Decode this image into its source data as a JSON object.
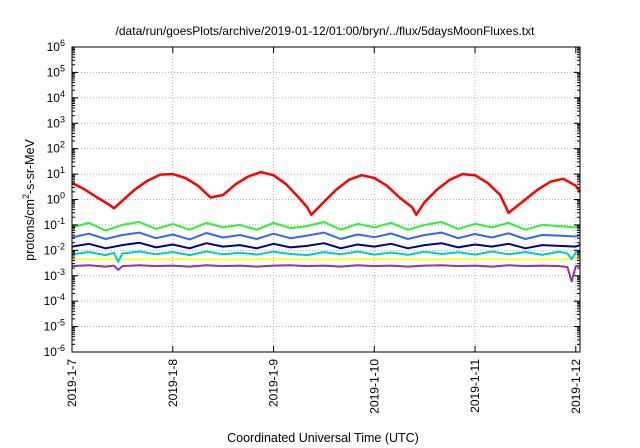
{
  "chart_data": {
    "type": "line",
    "title": "/data/run/goesPlots/archive/2019-01-12/01:00/bryn/../flux/5daysMoonFluxes.txt",
    "xlabel": "Coordinated Universal Time (UTC)",
    "ylabel": {
      "base": "protons/cm",
      "sup": "2",
      "rest": "-s-sr-MeV"
    },
    "x_scale": "time",
    "y_scale": "log",
    "xlim": [
      "2019-01-07T00:00",
      "2019-01-12T01:00"
    ],
    "ylim": [
      1e-06,
      1000000.0
    ],
    "grid": true,
    "legend": "none",
    "x_ticks": [
      {
        "at": "2019-01-07T00:00",
        "label": "2019-1-7"
      },
      {
        "at": "2019-01-08T00:00",
        "label": "2019-1-8"
      },
      {
        "at": "2019-01-09T00:00",
        "label": "2019-1-9"
      },
      {
        "at": "2019-01-10T00:00",
        "label": "2019-1-10"
      },
      {
        "at": "2019-01-11T00:00",
        "label": "2019-1-11"
      },
      {
        "at": "2019-01-12T00:00",
        "label": "2019-1-12"
      }
    ],
    "y_ticks": [
      {
        "value": 1e-06,
        "base": "10",
        "exp": "-6"
      },
      {
        "value": 1e-05,
        "base": "10",
        "exp": "-5"
      },
      {
        "value": 0.0001,
        "base": "10",
        "exp": "-4"
      },
      {
        "value": 0.001,
        "base": "10",
        "exp": "-3"
      },
      {
        "value": 0.01,
        "base": "10",
        "exp": "-2"
      },
      {
        "value": 0.1,
        "base": "10",
        "exp": "-1"
      },
      {
        "value": 1.0,
        "base": "10",
        "exp": "0"
      },
      {
        "value": 10.0,
        "base": "10",
        "exp": "1"
      },
      {
        "value": 100.0,
        "base": "10",
        "exp": "2"
      },
      {
        "value": 1000.0,
        "base": "10",
        "exp": "3"
      },
      {
        "value": 10000.0,
        "base": "10",
        "exp": "4"
      },
      {
        "value": 100000.0,
        "base": "10",
        "exp": "5"
      },
      {
        "value": 1000000.0,
        "base": "10",
        "exp": "6"
      }
    ],
    "series": [
      {
        "color": "#ffff33",
        "width": 2,
        "x": [
          "2019-01-07T00:00",
          "2019-01-07T12:00",
          "2019-01-08T00:00",
          "2019-01-08T12:00",
          "2019-01-09T00:00",
          "2019-01-09T12:00",
          "2019-01-10T00:00",
          "2019-01-10T12:00",
          "2019-01-11T00:00",
          "2019-01-11T12:00",
          "2019-01-12T00:00",
          "2019-01-12T01:00"
        ],
        "y": [
          0.0045,
          0.0044,
          0.0045,
          0.0044,
          0.0045,
          0.0044,
          0.0045,
          0.0044,
          0.0045,
          0.0044,
          0.0045,
          0.0045
        ]
      },
      {
        "color": "#993399",
        "width": 2,
        "x": [
          "2019-01-07T00:00",
          "2019-01-07T04:00",
          "2019-01-07T08:00",
          "2019-01-07T10:00",
          "2019-01-07T11:00",
          "2019-01-07T12:00",
          "2019-01-07T16:00",
          "2019-01-07T20:00",
          "2019-01-08T00:00",
          "2019-01-08T04:00",
          "2019-01-08T08:00",
          "2019-01-08T12:00",
          "2019-01-08T16:00",
          "2019-01-08T20:00",
          "2019-01-09T00:00",
          "2019-01-09T04:00",
          "2019-01-09T08:00",
          "2019-01-09T12:00",
          "2019-01-09T16:00",
          "2019-01-09T20:00",
          "2019-01-10T00:00",
          "2019-01-10T04:00",
          "2019-01-10T08:00",
          "2019-01-10T12:00",
          "2019-01-10T16:00",
          "2019-01-10T20:00",
          "2019-01-11T00:00",
          "2019-01-11T04:00",
          "2019-01-11T08:00",
          "2019-01-11T12:00",
          "2019-01-11T16:00",
          "2019-01-11T20:00",
          "2019-01-11T22:00",
          "2019-01-11T23:00",
          "2019-01-12T00:00",
          "2019-01-12T01:00"
        ],
        "y": [
          0.0024,
          0.0026,
          0.0023,
          0.0025,
          0.0017,
          0.0024,
          0.0026,
          0.0024,
          0.0025,
          0.0023,
          0.0026,
          0.0024,
          0.0025,
          0.0023,
          0.0025,
          0.0026,
          0.0024,
          0.0025,
          0.0023,
          0.0026,
          0.0024,
          0.0025,
          0.0023,
          0.0025,
          0.0026,
          0.0024,
          0.0025,
          0.0023,
          0.0026,
          0.0024,
          0.0025,
          0.0024,
          0.0022,
          0.0006,
          0.0024,
          0.0025
        ]
      },
      {
        "color": "#00cccc",
        "width": 2,
        "x": [
          "2019-01-07T00:00",
          "2019-01-07T04:00",
          "2019-01-07T08:00",
          "2019-01-07T10:00",
          "2019-01-07T11:00",
          "2019-01-07T12:00",
          "2019-01-07T16:00",
          "2019-01-07T20:00",
          "2019-01-08T00:00",
          "2019-01-08T04:00",
          "2019-01-08T08:00",
          "2019-01-08T12:00",
          "2019-01-08T16:00",
          "2019-01-08T20:00",
          "2019-01-09T00:00",
          "2019-01-09T04:00",
          "2019-01-09T08:00",
          "2019-01-09T12:00",
          "2019-01-09T16:00",
          "2019-01-09T20:00",
          "2019-01-10T00:00",
          "2019-01-10T04:00",
          "2019-01-10T08:00",
          "2019-01-10T12:00",
          "2019-01-10T16:00",
          "2019-01-10T20:00",
          "2019-01-11T00:00",
          "2019-01-11T04:00",
          "2019-01-11T08:00",
          "2019-01-11T12:00",
          "2019-01-11T16:00",
          "2019-01-11T20:00",
          "2019-01-11T22:00",
          "2019-01-11T23:00",
          "2019-01-12T00:00",
          "2019-01-12T01:00"
        ],
        "y": [
          0.007,
          0.0085,
          0.0065,
          0.008,
          0.0035,
          0.0075,
          0.009,
          0.007,
          0.0085,
          0.0065,
          0.009,
          0.007,
          0.008,
          0.0068,
          0.0088,
          0.0072,
          0.0065,
          0.0085,
          0.007,
          0.009,
          0.0068,
          0.0082,
          0.0066,
          0.0088,
          0.0072,
          0.0084,
          0.0068,
          0.009,
          0.007,
          0.0085,
          0.0066,
          0.0088,
          0.0075,
          0.0045,
          0.0082,
          0.008
        ]
      },
      {
        "color": "#000099",
        "width": 2,
        "x": [
          "2019-01-07T00:00",
          "2019-01-07T04:00",
          "2019-01-07T08:00",
          "2019-01-07T12:00",
          "2019-01-07T16:00",
          "2019-01-07T20:00",
          "2019-01-08T00:00",
          "2019-01-08T04:00",
          "2019-01-08T08:00",
          "2019-01-08T12:00",
          "2019-01-08T16:00",
          "2019-01-08T20:00",
          "2019-01-09T00:00",
          "2019-01-09T04:00",
          "2019-01-09T08:00",
          "2019-01-09T12:00",
          "2019-01-09T16:00",
          "2019-01-09T20:00",
          "2019-01-10T00:00",
          "2019-01-10T04:00",
          "2019-01-10T08:00",
          "2019-01-10T12:00",
          "2019-01-10T16:00",
          "2019-01-10T20:00",
          "2019-01-11T00:00",
          "2019-01-11T04:00",
          "2019-01-11T08:00",
          "2019-01-11T12:00",
          "2019-01-11T16:00",
          "2019-01-11T20:00",
          "2019-01-12T00:00",
          "2019-01-12T01:00"
        ],
        "y": [
          0.014,
          0.018,
          0.012,
          0.016,
          0.02,
          0.013,
          0.017,
          0.012,
          0.019,
          0.014,
          0.016,
          0.012,
          0.018,
          0.013,
          0.015,
          0.019,
          0.012,
          0.017,
          0.014,
          0.018,
          0.012,
          0.016,
          0.019,
          0.013,
          0.017,
          0.014,
          0.018,
          0.012,
          0.016,
          0.015,
          0.014,
          0.016
        ]
      },
      {
        "color": "#3366ff",
        "width": 2,
        "x": [
          "2019-01-07T00:00",
          "2019-01-07T04:00",
          "2019-01-07T08:00",
          "2019-01-07T12:00",
          "2019-01-07T16:00",
          "2019-01-07T20:00",
          "2019-01-08T00:00",
          "2019-01-08T04:00",
          "2019-01-08T08:00",
          "2019-01-08T12:00",
          "2019-01-08T16:00",
          "2019-01-08T20:00",
          "2019-01-09T00:00",
          "2019-01-09T04:00",
          "2019-01-09T08:00",
          "2019-01-09T12:00",
          "2019-01-09T16:00",
          "2019-01-09T20:00",
          "2019-01-10T00:00",
          "2019-01-10T04:00",
          "2019-01-10T08:00",
          "2019-01-10T12:00",
          "2019-01-10T16:00",
          "2019-01-10T20:00",
          "2019-01-11T00:00",
          "2019-01-11T04:00",
          "2019-01-11T08:00",
          "2019-01-11T12:00",
          "2019-01-11T16:00",
          "2019-01-11T20:00",
          "2019-01-12T00:00",
          "2019-01-12T01:00"
        ],
        "y": [
          0.032,
          0.045,
          0.028,
          0.04,
          0.05,
          0.03,
          0.042,
          0.027,
          0.048,
          0.032,
          0.04,
          0.028,
          0.045,
          0.03,
          0.038,
          0.05,
          0.028,
          0.042,
          0.033,
          0.046,
          0.028,
          0.04,
          0.05,
          0.03,
          0.044,
          0.032,
          0.047,
          0.028,
          0.04,
          0.038,
          0.035,
          0.04
        ]
      },
      {
        "color": "#33ee33",
        "width": 2,
        "x": [
          "2019-01-07T00:00",
          "2019-01-07T04:00",
          "2019-01-07T08:00",
          "2019-01-07T12:00",
          "2019-01-07T16:00",
          "2019-01-07T20:00",
          "2019-01-08T00:00",
          "2019-01-08T04:00",
          "2019-01-08T08:00",
          "2019-01-08T12:00",
          "2019-01-08T16:00",
          "2019-01-08T20:00",
          "2019-01-09T00:00",
          "2019-01-09T04:00",
          "2019-01-09T08:00",
          "2019-01-09T12:00",
          "2019-01-09T16:00",
          "2019-01-09T20:00",
          "2019-01-10T00:00",
          "2019-01-10T04:00",
          "2019-01-10T08:00",
          "2019-01-10T12:00",
          "2019-01-10T16:00",
          "2019-01-10T20:00",
          "2019-01-11T00:00",
          "2019-01-11T04:00",
          "2019-01-11T08:00",
          "2019-01-11T12:00",
          "2019-01-11T16:00",
          "2019-01-11T20:00",
          "2019-01-12T00:00",
          "2019-01-12T01:00"
        ],
        "y": [
          0.08,
          0.12,
          0.06,
          0.1,
          0.13,
          0.07,
          0.11,
          0.065,
          0.12,
          0.08,
          0.1,
          0.065,
          0.12,
          0.075,
          0.09,
          0.13,
          0.065,
          0.11,
          0.08,
          0.12,
          0.065,
          0.1,
          0.13,
          0.07,
          0.11,
          0.08,
          0.12,
          0.065,
          0.1,
          0.09,
          0.08,
          0.1
        ]
      },
      {
        "color": "#ff0000",
        "width": 2.5,
        "x": [
          "2019-01-07T00:00",
          "2019-01-07T03:00",
          "2019-01-07T06:00",
          "2019-01-07T09:00",
          "2019-01-07T10:00",
          "2019-01-07T12:00",
          "2019-01-07T15:00",
          "2019-01-07T18:00",
          "2019-01-07T21:00",
          "2019-01-08T00:00",
          "2019-01-08T03:00",
          "2019-01-08T06:00",
          "2019-01-08T09:00",
          "2019-01-08T12:00",
          "2019-01-08T15:00",
          "2019-01-08T18:00",
          "2019-01-08T21:00",
          "2019-01-09T00:00",
          "2019-01-09T03:00",
          "2019-01-09T06:00",
          "2019-01-09T08:00",
          "2019-01-09T09:00",
          "2019-01-09T12:00",
          "2019-01-09T15:00",
          "2019-01-09T18:00",
          "2019-01-09T21:00",
          "2019-01-10T00:00",
          "2019-01-10T03:00",
          "2019-01-10T06:00",
          "2019-01-10T09:00",
          "2019-01-10T10:00",
          "2019-01-10T12:00",
          "2019-01-10T15:00",
          "2019-01-10T18:00",
          "2019-01-10T21:00",
          "2019-01-11T00:00",
          "2019-01-11T03:00",
          "2019-01-11T06:00",
          "2019-01-11T08:00",
          "2019-01-11T12:00",
          "2019-01-11T15:00",
          "2019-01-11T18:00",
          "2019-01-11T21:00",
          "2019-01-12T00:00",
          "2019-01-12T01:00"
        ],
        "y": [
          4.5,
          2.5,
          1.2,
          0.6,
          0.45,
          0.9,
          2.5,
          5.5,
          9.5,
          10,
          7,
          3.5,
          1.2,
          1.5,
          4,
          8,
          12,
          9,
          4,
          1.2,
          0.5,
          0.25,
          0.8,
          2.5,
          6,
          9,
          7,
          3.5,
          1.2,
          0.5,
          0.25,
          0.8,
          2.5,
          6,
          10,
          9,
          4.5,
          1.5,
          0.3,
          1.0,
          2.5,
          5.0,
          6.5,
          3.5,
          2.0
        ]
      }
    ]
  }
}
